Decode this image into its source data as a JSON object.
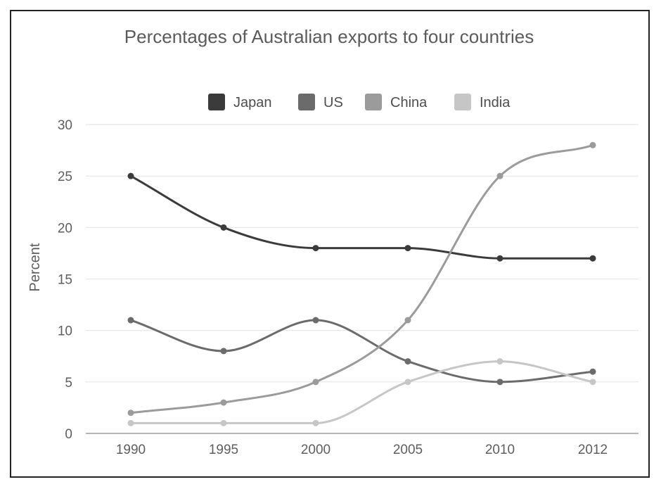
{
  "chart_data": {
    "type": "line",
    "title": "Percentages of Australian exports to four countries",
    "xlabel": "",
    "ylabel": "Percent",
    "categories": [
      "1990",
      "1995",
      "2000",
      "2005",
      "2010",
      "2012"
    ],
    "ylim": [
      0,
      30
    ],
    "yticks": [
      "0",
      "5",
      "10",
      "15",
      "20",
      "25",
      "30"
    ],
    "grid": true,
    "legend_position": "top",
    "series": [
      {
        "name": "Japan",
        "color": "#3b3b3b",
        "values": [
          25,
          20,
          18,
          18,
          17,
          17
        ]
      },
      {
        "name": "US",
        "color": "#6b6b6b",
        "values": [
          11,
          8,
          11,
          7,
          5,
          6
        ]
      },
      {
        "name": "China",
        "color": "#9b9b9b",
        "values": [
          2,
          3,
          5,
          11,
          25,
          28
        ]
      },
      {
        "name": "India",
        "color": "#c6c6c6",
        "values": [
          1,
          1,
          1,
          5,
          7,
          5
        ]
      }
    ]
  }
}
